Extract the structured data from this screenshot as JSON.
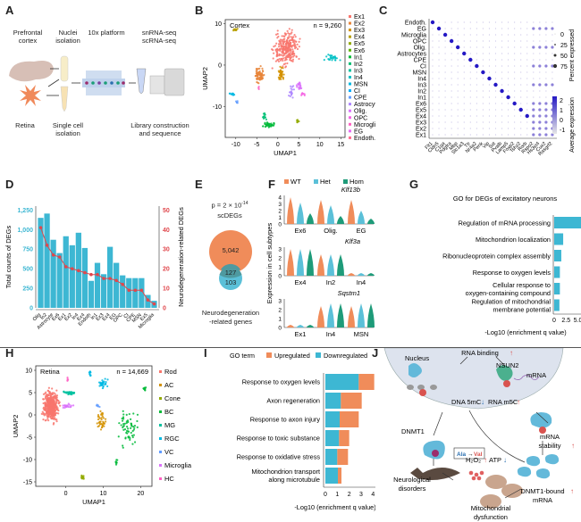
{
  "panels": {
    "A": {
      "letter": "A",
      "labels": {
        "prefrontal": "Prefrontal\ncortex",
        "nuclei": "Nuclei\nisolation",
        "platform": "10x platform",
        "seq": "snRNA-seq\nscRNA-seq",
        "retina": "Retina",
        "single": "Single cell\nisolation",
        "library": "Library construction\nand sequence"
      }
    },
    "B": {
      "letter": "B"
    },
    "C": {
      "letter": "C"
    },
    "D": {
      "letter": "D"
    },
    "E": {
      "letter": "E",
      "pvalue": "p = 2 × 10",
      "pexp": "-14",
      "title": "scDEGs",
      "only_scdegs": "5,042",
      "overlap": "127",
      "only_neuro": "103",
      "bottom_label1": "Neurodegeneration",
      "bottom_label2": "-related genes",
      "colors": {
        "scdegs": "#F08C5A",
        "neuro": "#5BC0D8",
        "overlap": "#4E9AA0"
      }
    },
    "F": {
      "letter": "F"
    },
    "G": {
      "letter": "G"
    },
    "H": {
      "letter": "H"
    },
    "I": {
      "letter": "I"
    },
    "J": {
      "letter": "J",
      "labels": {
        "rna_binding": "RNA binding",
        "nucleus": "Nucleus",
        "nsun2": "NSUN2",
        "mrna": "mRNA",
        "dna5mc": "DNA 5mC",
        "rnam5c": "RNA m5C",
        "dnmt1": "DNMT1",
        "mutation_from": "Ala",
        "mutation_to": "Val",
        "mrna_stability": "mRNA\nstability",
        "h2o2": "H2O2",
        "atp": "ATP",
        "neuro": "Neurological\ndisorders",
        "bound": "DNMT1-bound\nmRNA",
        "mito": "Mitochondrial\ndysfunction"
      }
    }
  },
  "chart_data": [
    {
      "id": "B",
      "type": "scatter",
      "title": "Cortex",
      "annotation": "n = 9,260",
      "xlabel": "UMAP1",
      "ylabel": "UMAP2",
      "xticks": [
        -10,
        -5,
        0,
        5,
        10,
        15
      ],
      "yticks": [
        -10,
        0,
        10
      ],
      "xlim": [
        -12.5,
        16
      ],
      "ylim": [
        -17.5,
        11
      ],
      "legend": [
        "Ex1",
        "Ex2",
        "Ex3",
        "Ex4",
        "Ex5",
        "Ex6",
        "In1",
        "In2",
        "In3",
        "In4",
        "MSN",
        "CI",
        "CPE",
        "Astrocytes",
        "Olig.",
        "OPC",
        "Microglia",
        "EG",
        "Endoth."
      ],
      "legend_colors": [
        "#F8766D",
        "#E8853A",
        "#D39200",
        "#B79F00",
        "#93AA00",
        "#5EB300",
        "#00BA38",
        "#00BF74",
        "#00C19F",
        "#00BFC4",
        "#00B9E3",
        "#00ADFA",
        "#619CFF",
        "#AE87FF",
        "#DB72FB",
        "#F564E3",
        "#FF61C3",
        "#E76BF3",
        "#FF6C91"
      ],
      "clusters": [
        {
          "name": "Ex1",
          "cx": 2,
          "cy": 4,
          "sx": 2.3,
          "sy": 3.2,
          "n": 260,
          "color": "#F8766D"
        },
        {
          "name": "Ex2",
          "cx": -4.5,
          "cy": -2.5,
          "sx": 0.9,
          "sy": 1.6,
          "n": 70,
          "color": "#E8853A"
        },
        {
          "name": "Ex3",
          "cx": 0.8,
          "cy": -2,
          "sx": 0.5,
          "sy": 1.2,
          "n": 40,
          "color": "#D39200"
        },
        {
          "name": "Ex4",
          "cx": -10,
          "cy": 8.5,
          "sx": 0.5,
          "sy": 0.3,
          "n": 15,
          "color": "#B79F00"
        },
        {
          "name": "Ex5",
          "cx": 4.7,
          "cy": -13.7,
          "sx": 0.3,
          "sy": 0.3,
          "n": 8,
          "color": "#93AA00"
        },
        {
          "name": "In1",
          "cx": -2,
          "cy": -14.5,
          "sx": 1.2,
          "sy": 0.6,
          "n": 35,
          "color": "#00BA38"
        },
        {
          "name": "In2",
          "cx": -3.2,
          "cy": -12.5,
          "sx": 0.4,
          "sy": 0.8,
          "n": 12,
          "color": "#00BF74"
        },
        {
          "name": "In4",
          "cx": 12.8,
          "cy": 1.8,
          "sx": 1.3,
          "sy": 0.8,
          "n": 25,
          "color": "#00BFC4"
        },
        {
          "name": "MSN",
          "cx": -10.8,
          "cy": -7,
          "sx": 0.6,
          "sy": 0.3,
          "n": 10,
          "color": "#00B9E3"
        },
        {
          "name": "CPE",
          "cx": -9.7,
          "cy": -9,
          "sx": 0.2,
          "sy": 0.3,
          "n": 5,
          "color": "#619CFF"
        },
        {
          "name": "Astrocytes",
          "cx": 3.3,
          "cy": -6.5,
          "sx": 0.5,
          "sy": 1.2,
          "n": 20,
          "color": "#AE87FF"
        },
        {
          "name": "Olig.",
          "cx": 5.2,
          "cy": -5,
          "sx": 0.6,
          "sy": 0.8,
          "n": 20,
          "color": "#DB72FB"
        },
        {
          "name": "OPC",
          "cx": 6,
          "cy": -7,
          "sx": 0.5,
          "sy": 0.5,
          "n": 8,
          "color": "#F564E3"
        },
        {
          "name": "Microglia",
          "cx": -4.5,
          "cy": -5.5,
          "sx": 0.1,
          "sy": 0.3,
          "n": 3,
          "color": "#FF61C3"
        }
      ]
    },
    {
      "id": "C",
      "type": "dotplot",
      "rows": [
        "Endoth.",
        "EG",
        "Microglia",
        "OPC",
        "Olig.",
        "Astrocytes",
        "CPE",
        "CI",
        "MSN",
        "In4",
        "In3",
        "In2",
        "In1",
        "Ex6",
        "Ex5",
        "Ex4",
        "Ex3",
        "Ex2",
        "Ex1"
      ],
      "genes": [
        "Flt1",
        "Cldn5",
        "C1qa",
        "Pdgfra",
        "Mbp",
        "Slc1a3",
        "Ttr",
        "Nr4a2",
        "Penk",
        "Vip",
        "Sst",
        "Pvalb",
        "Lamp5",
        "Foxp2",
        "Tshz2",
        "Rorb",
        "Rspo2",
        "Hs3st4",
        "Cux2",
        "Rasgrf2"
      ],
      "colorbar_label": "Average expression",
      "colorbar_ticks": [
        2,
        1,
        0,
        -1
      ],
      "size_label": "Percent expressed",
      "size_ticks": [
        0,
        25,
        50,
        75
      ]
    },
    {
      "id": "D",
      "type": "bar+line",
      "categories": [
        "Olig",
        "In2",
        "Astrocyte",
        "Ex6",
        "Ex1",
        "Ex2",
        "In4",
        "Ex4b",
        "Endoth",
        "In1",
        "Ex3",
        "Ex4",
        "EG",
        "OPC",
        "CI",
        "CPE",
        "MSN",
        "Ex5",
        "Microglia"
      ],
      "bar_values": [
        1150,
        1205,
        870,
        700,
        915,
        800,
        960,
        765,
        345,
        575,
        430,
        780,
        575,
        415,
        380,
        380,
        380,
        165,
        90
      ],
      "line_values": [
        41,
        32,
        27,
        26,
        21,
        20,
        19,
        18,
        17,
        17,
        15,
        15,
        14,
        12,
        9,
        9,
        9,
        4,
        2
      ],
      "ylabel_left": "Total counts of DEGs",
      "ylabel_right": "Neurodegeneration-related DEGs",
      "yticks_left": [
        "0",
        "250",
        "500",
        "750",
        "1,000",
        "1,250"
      ],
      "yticks_right": [
        "0",
        "10",
        "20",
        "30",
        "40",
        "50"
      ],
      "ylim_left": [
        0,
        1300
      ],
      "ylim_right": [
        0,
        52
      ],
      "bar_color": "#3DB7D3",
      "line_color": "#E0474C"
    },
    {
      "id": "F",
      "type": "violin",
      "legend": [
        {
          "name": "WT",
          "color": "#F08C5A"
        },
        {
          "name": "Het",
          "color": "#5BC0D8"
        },
        {
          "name": "Hom",
          "color": "#1E9B79"
        }
      ],
      "ylabel": "Expression in cell subtypes",
      "genes": [
        {
          "gene": "Klf13b",
          "groups": [
            "Ex6",
            "Olig.",
            "EG"
          ],
          "yticks": [
            0,
            1,
            2,
            3,
            4
          ]
        },
        {
          "gene": "Klf3a",
          "groups": [
            "Ex4",
            "In2",
            "In4"
          ],
          "yticks": [
            0,
            1,
            2,
            3
          ]
        },
        {
          "gene": "Sqstm1",
          "groups": [
            "Ex1",
            "In4",
            "MSN"
          ],
          "yticks": [
            0,
            1,
            2,
            3
          ]
        }
      ]
    },
    {
      "id": "G",
      "type": "bar",
      "title": "GO for DEGs of excitatory neurons",
      "categories": [
        "Regulation of mRNA processing",
        "Mitochondrion localization",
        "Ribonucleoprotein complex assembly",
        "Response to oxygen levels",
        "Cellular response to\noxygen-containing compound",
        "Regulation of mitochondrial\nmembrane potential"
      ],
      "values": [
        7.9,
        1.9,
        1.5,
        1.2,
        1.2,
        1.1
      ],
      "xlabel": "-Log10 (enrichment q value)",
      "xticks": [
        "0",
        "2.5",
        "5.0",
        "7.5"
      ],
      "xlim": [
        0,
        8.3
      ],
      "color": "#3DB7D3"
    },
    {
      "id": "H",
      "type": "scatter",
      "title": "Retina",
      "annotation": "n = 14,669",
      "xlabel": "UMAP1",
      "ylabel": "UMAP2",
      "xticks": [
        0,
        10,
        20
      ],
      "yticks": [
        -15,
        -10,
        -5,
        0,
        5,
        10
      ],
      "xlim": [
        -8,
        23
      ],
      "ylim": [
        -16,
        11
      ],
      "legend": [
        "Rod",
        "AC",
        "Cone",
        "BC",
        "MG",
        "RGC",
        "VC",
        "Microglia",
        "HC"
      ],
      "legend_colors": [
        "#F8766D",
        "#D39200",
        "#93AA00",
        "#00BA38",
        "#00C19F",
        "#00B9E3",
        "#619CFF",
        "#DB72FB",
        "#FF61C3"
      ],
      "clusters": [
        {
          "name": "Rod",
          "cx": -4,
          "cy": 2,
          "sx": 1.6,
          "sy": 2.6,
          "n": 420,
          "color": "#F8766D"
        },
        {
          "name": "AC",
          "cx": 9.5,
          "cy": -1.5,
          "sx": 1,
          "sy": 1.8,
          "n": 40,
          "color": "#D39200"
        },
        {
          "name": "Cone",
          "cx": 4.5,
          "cy": -14,
          "sx": 0.3,
          "sy": 0.4,
          "n": 20,
          "color": "#93AA00"
        },
        {
          "name": "BC",
          "cx": 17,
          "cy": -3,
          "sx": 2.3,
          "sy": 3,
          "n": 60,
          "color": "#00BA38"
        },
        {
          "name": "BC2",
          "cx": 21,
          "cy": 5.8,
          "sx": 0.3,
          "sy": 0.5,
          "n": 15,
          "color": "#00BA38"
        },
        {
          "name": "BC3",
          "cx": 13.5,
          "cy": -10.5,
          "sx": 0.2,
          "sy": 0.8,
          "n": 8,
          "color": "#00BA38"
        },
        {
          "name": "MG",
          "cx": 1,
          "cy": 5,
          "sx": 1.3,
          "sy": 0.3,
          "n": 35,
          "color": "#00C19F"
        },
        {
          "name": "RGC",
          "cx": 10,
          "cy": 7,
          "sx": 1,
          "sy": 0.8,
          "n": 30,
          "color": "#00B9E3"
        },
        {
          "name": "RGC2",
          "cx": 6.5,
          "cy": 9.5,
          "sx": 0.3,
          "sy": 0.8,
          "n": 10,
          "color": "#00B9E3"
        },
        {
          "name": "VC",
          "cx": 8.5,
          "cy": 2,
          "sx": 0.4,
          "sy": 0.3,
          "n": 6,
          "color": "#619CFF"
        },
        {
          "name": "Microglia",
          "cx": 0.5,
          "cy": 2,
          "sx": 1.2,
          "sy": 0.4,
          "n": 25,
          "color": "#DB72FB"
        },
        {
          "name": "HC",
          "cx": 0.5,
          "cy": 8,
          "sx": 0.2,
          "sy": 0.4,
          "n": 5,
          "color": "#FF61C3"
        }
      ]
    },
    {
      "id": "I",
      "type": "stacked-barh",
      "legend_title": "GO term",
      "legend": [
        {
          "name": "Upregulated",
          "color": "#F08C5A"
        },
        {
          "name": "Downregulated",
          "color": "#3DB7D3"
        }
      ],
      "categories": [
        "Response to oxygen levels",
        "Axon regeneration",
        "Response to axon injury",
        "Response to toxic substance",
        "Response to oxidative stress",
        "Mitochondrion transport\nalong microtubule"
      ],
      "series": [
        {
          "name": "Downregulated",
          "values": [
            2.8,
            1.3,
            1.2,
            1.15,
            1.0,
            1.05
          ]
        },
        {
          "name": "Upregulated",
          "values": [
            1.3,
            1.75,
            1.6,
            0.85,
            0.9,
            0.3
          ]
        }
      ],
      "xlabel": "-Log10 (enrichment q value)",
      "xticks": [
        "0",
        "1",
        "2",
        "3",
        "4"
      ],
      "xlim": [
        0,
        4.2
      ]
    }
  ]
}
